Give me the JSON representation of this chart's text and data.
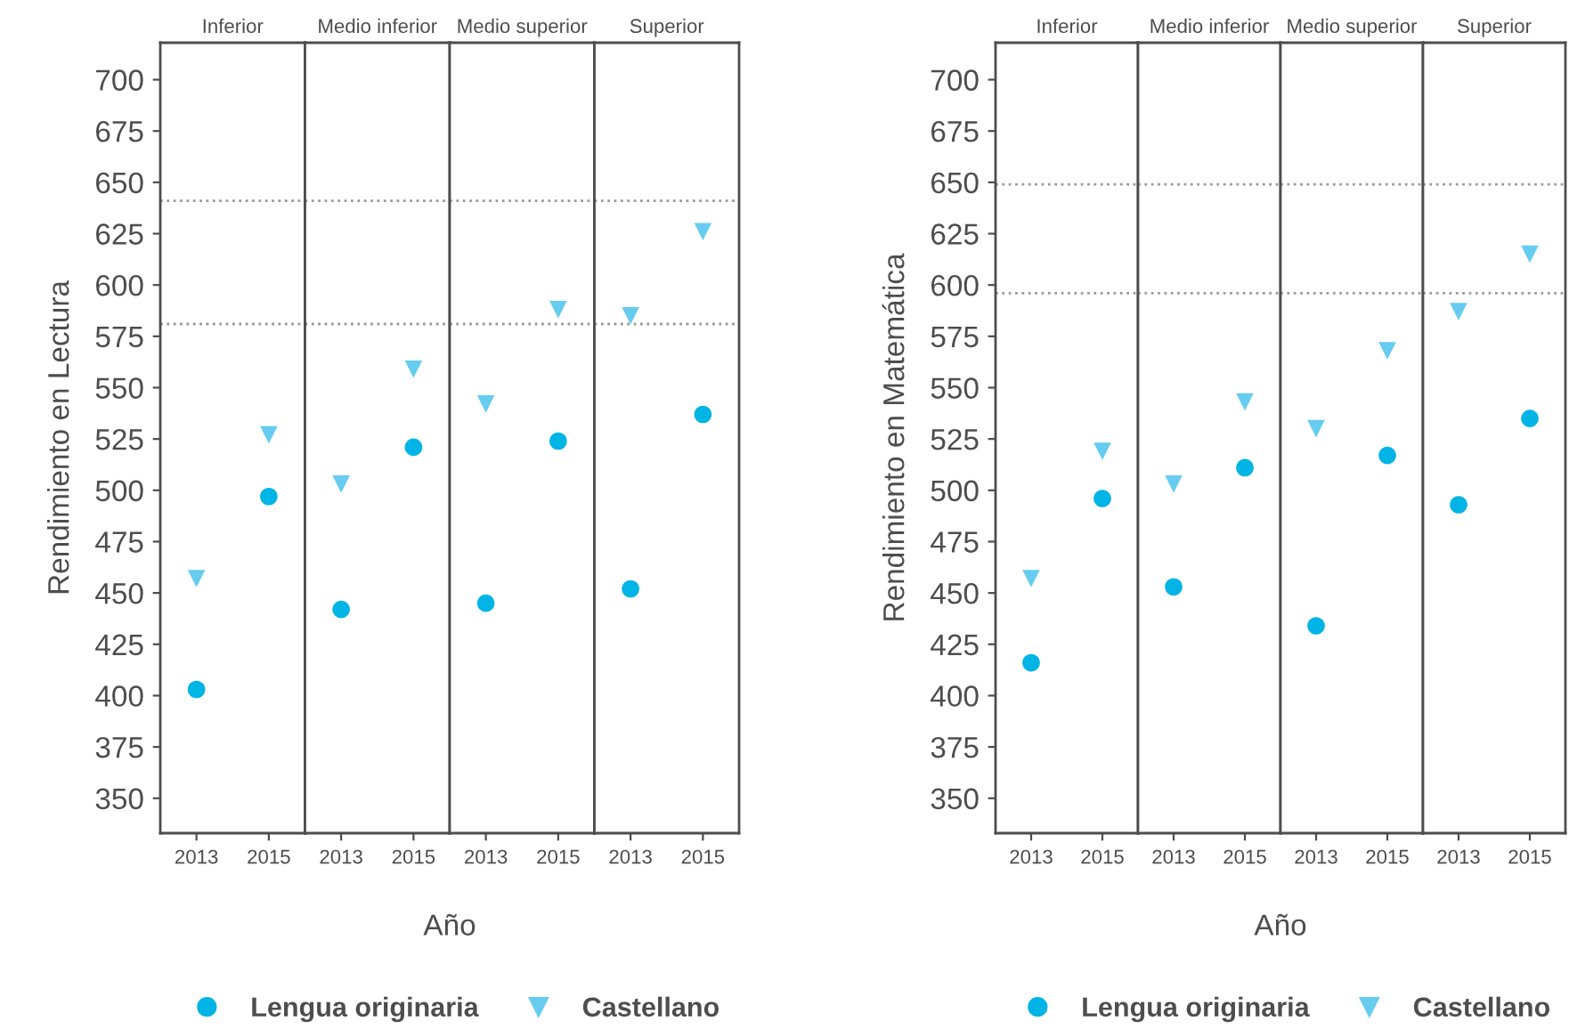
{
  "chart_data": [
    {
      "type": "scatter",
      "title": "Inferior",
      "ylabel": "Rendimiento en Lectura",
      "xlabel": "Año",
      "legend": "bottom",
      "categories": [
        "2013",
        "2015"
      ],
      "ylim": [
        333,
        718
      ],
      "yticks": [
        350,
        375,
        400,
        425,
        450,
        475,
        500,
        525,
        550,
        575,
        600,
        625,
        650,
        675,
        700
      ],
      "grid": false,
      "series": [
        {
          "name": "Lengua originaria",
          "color": "#00b4e6",
          "marker": "circle",
          "values": [
            403,
            497
          ]
        },
        {
          "name": "Castellano",
          "color": "#66ccf0",
          "marker": "triangle",
          "values": [
            457,
            527
          ]
        }
      ],
      "ref_lines": [
        {
          "axis": "y",
          "value": 641,
          "color": "#999999",
          "line_style": "dotted"
        },
        {
          "axis": "y",
          "value": 581,
          "color": "#999999",
          "line_style": "dotted"
        }
      ]
    },
    {
      "type": "scatter",
      "title": "Medio inferior",
      "tick_labels": "x",
      "categories": [
        "2013",
        "2015"
      ],
      "ylim": [
        333,
        718
      ],
      "yticks": [
        350,
        375,
        400,
        425,
        450,
        475,
        500,
        525,
        550,
        575,
        600,
        625,
        650,
        675,
        700
      ],
      "grid": false,
      "series": [
        {
          "color": "#00b4e6",
          "marker": "circle",
          "values": [
            442,
            521
          ]
        },
        {
          "color": "#66ccf0",
          "marker": "triangle",
          "values": [
            503,
            559
          ]
        }
      ],
      "ref_lines": [
        {
          "axis": "y",
          "value": 641,
          "color": "#999999",
          "line_style": "dotted"
        },
        {
          "axis": "y",
          "value": 581,
          "color": "#999999",
          "line_style": "dotted"
        }
      ]
    },
    {
      "type": "scatter",
      "title": "Medio superior",
      "tick_labels": "x",
      "categories": [
        "2013",
        "2015"
      ],
      "ylim": [
        333,
        718
      ],
      "yticks": [
        350,
        375,
        400,
        425,
        450,
        475,
        500,
        525,
        550,
        575,
        600,
        625,
        650,
        675,
        700
      ],
      "grid": false,
      "series": [
        {
          "color": "#00b4e6",
          "marker": "circle",
          "values": [
            445,
            524
          ]
        },
        {
          "color": "#66ccf0",
          "marker": "triangle",
          "values": [
            542,
            588
          ]
        }
      ],
      "ref_lines": [
        {
          "axis": "y",
          "value": 641,
          "color": "#999999",
          "line_style": "dotted"
        },
        {
          "axis": "y",
          "value": 581,
          "color": "#999999",
          "line_style": "dotted"
        }
      ]
    },
    {
      "type": "scatter",
      "title": "Superior",
      "tick_labels": "x",
      "categories": [
        "2013",
        "2015"
      ],
      "ylim": [
        333,
        718
      ],
      "yticks": [
        350,
        375,
        400,
        425,
        450,
        475,
        500,
        525,
        550,
        575,
        600,
        625,
        650,
        675,
        700
      ],
      "grid": false,
      "series": [
        {
          "color": "#00b4e6",
          "marker": "circle",
          "values": [
            452,
            537
          ]
        },
        {
          "color": "#66ccf0",
          "marker": "triangle",
          "values": [
            585,
            626
          ]
        }
      ],
      "ref_lines": [
        {
          "axis": "y",
          "value": 641,
          "color": "#999999",
          "line_style": "dotted"
        },
        {
          "axis": "y",
          "value": 581,
          "color": "#999999",
          "line_style": "dotted"
        }
      ]
    },
    {
      "type": "scatter",
      "title": "Inferior",
      "ylabel": "Rendimiento en Matemática",
      "xlabel": "Año",
      "legend": "bottom",
      "categories": [
        "2013",
        "2015"
      ],
      "ylim": [
        333,
        718
      ],
      "yticks": [
        350,
        375,
        400,
        425,
        450,
        475,
        500,
        525,
        550,
        575,
        600,
        625,
        650,
        675,
        700
      ],
      "grid": false,
      "series": [
        {
          "name": "Lengua originaria",
          "color": "#00b4e6",
          "marker": "circle",
          "values": [
            416,
            496
          ]
        },
        {
          "name": "Castellano",
          "color": "#66ccf0",
          "marker": "triangle",
          "values": [
            457,
            519
          ]
        }
      ],
      "ref_lines": [
        {
          "axis": "y",
          "value": 649,
          "color": "#999999",
          "line_style": "dotted"
        },
        {
          "axis": "y",
          "value": 596,
          "color": "#999999",
          "line_style": "dotted"
        }
      ]
    },
    {
      "type": "scatter",
      "title": "Medio inferior",
      "tick_labels": "x",
      "categories": [
        "2013",
        "2015"
      ],
      "ylim": [
        333,
        718
      ],
      "yticks": [
        350,
        375,
        400,
        425,
        450,
        475,
        500,
        525,
        550,
        575,
        600,
        625,
        650,
        675,
        700
      ],
      "grid": false,
      "series": [
        {
          "color": "#00b4e6",
          "marker": "circle",
          "values": [
            453,
            511
          ]
        },
        {
          "color": "#66ccf0",
          "marker": "triangle",
          "values": [
            503,
            543
          ]
        }
      ],
      "ref_lines": [
        {
          "axis": "y",
          "value": 649,
          "color": "#999999",
          "line_style": "dotted"
        },
        {
          "axis": "y",
          "value": 596,
          "color": "#999999",
          "line_style": "dotted"
        }
      ]
    },
    {
      "type": "scatter",
      "title": "Medio superior",
      "tick_labels": "x",
      "categories": [
        "2013",
        "2015"
      ],
      "ylim": [
        333,
        718
      ],
      "yticks": [
        350,
        375,
        400,
        425,
        450,
        475,
        500,
        525,
        550,
        575,
        600,
        625,
        650,
        675,
        700
      ],
      "grid": false,
      "series": [
        {
          "color": "#00b4e6",
          "marker": "circle",
          "values": [
            434,
            517
          ]
        },
        {
          "color": "#66ccf0",
          "marker": "triangle",
          "values": [
            530,
            568
          ]
        }
      ],
      "ref_lines": [
        {
          "axis": "y",
          "value": 649,
          "color": "#999999",
          "line_style": "dotted"
        },
        {
          "axis": "y",
          "value": 596,
          "color": "#999999",
          "line_style": "dotted"
        }
      ]
    },
    {
      "type": "scatter",
      "title": "Superior",
      "tick_labels": "x",
      "categories": [
        "2013",
        "2015"
      ],
      "ylim": [
        333,
        718
      ],
      "yticks": [
        350,
        375,
        400,
        425,
        450,
        475,
        500,
        525,
        550,
        575,
        600,
        625,
        650,
        675,
        700
      ],
      "grid": false,
      "series": [
        {
          "color": "#00b4e6",
          "marker": "circle",
          "values": [
            493,
            535
          ]
        },
        {
          "color": "#66ccf0",
          "marker": "triangle",
          "values": [
            587,
            615
          ]
        }
      ],
      "ref_lines": [
        {
          "axis": "y",
          "value": 649,
          "color": "#999999",
          "line_style": "dotted"
        },
        {
          "axis": "y",
          "value": 596,
          "color": "#999999",
          "line_style": "dotted"
        }
      ]
    }
  ]
}
